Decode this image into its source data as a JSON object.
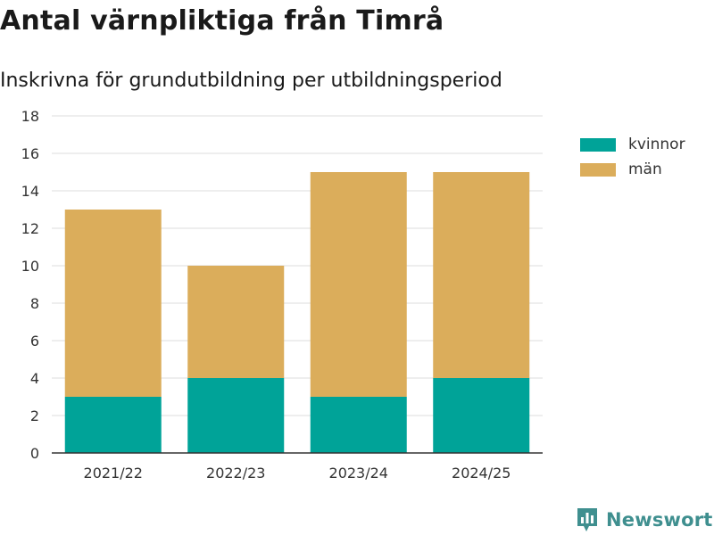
{
  "colors": {
    "kvinnor": "#00a398",
    "man": "#dbad5b",
    "grid": "#dddddd",
    "axis": "#333333",
    "brand": "#3f8f8f"
  },
  "brand": {
    "name": "Newsworthy",
    "icon": "newsworthy-logo-icon"
  },
  "chart_data": {
    "type": "bar",
    "stacked": true,
    "title": "Antal värnpliktiga från Timrå",
    "subtitle": "Inskrivna för grundutbildning per utbildningsperiod",
    "xlabel": "",
    "ylabel": "",
    "categories": [
      "2021/22",
      "2022/23",
      "2023/24",
      "2024/25"
    ],
    "series": [
      {
        "name": "kvinnor",
        "values": [
          3,
          4,
          3,
          4
        ]
      },
      {
        "name": "män",
        "values": [
          10,
          6,
          12,
          11
        ]
      }
    ],
    "ylim": [
      0,
      18
    ],
    "yticks": [
      "0",
      "2",
      "4",
      "6",
      "8",
      "10",
      "12",
      "14",
      "16",
      "18"
    ],
    "grid": true,
    "legend_position": "top-right"
  }
}
